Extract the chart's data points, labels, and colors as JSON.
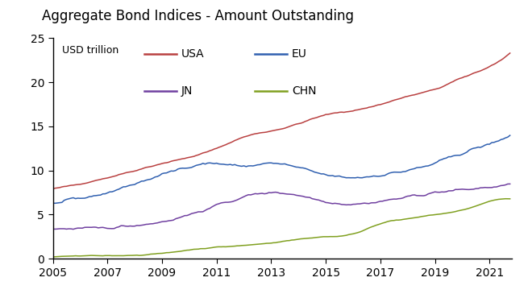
{
  "title": "Aggregate Bond Indices - Amount Outstanding",
  "ylabel": "USD trillion",
  "ylim": [
    0,
    25
  ],
  "yticks": [
    0,
    5,
    10,
    15,
    20,
    25
  ],
  "xlim": [
    2005.0,
    2021.83
  ],
  "xticks": [
    2005,
    2007,
    2009,
    2011,
    2013,
    2015,
    2017,
    2019,
    2021
  ],
  "series": {
    "USA": {
      "color": "#b94040",
      "years": [
        2005,
        2006,
        2007,
        2008,
        2009,
        2010,
        2011,
        2012,
        2013,
        2014,
        2015,
        2016,
        2017,
        2018,
        2019,
        2020,
        2021,
        2021.75
      ],
      "values": [
        7.9,
        8.5,
        9.2,
        10.0,
        10.8,
        11.5,
        12.5,
        13.8,
        14.5,
        15.3,
        16.3,
        16.8,
        17.5,
        18.4,
        19.2,
        20.5,
        21.8,
        23.3
      ]
    },
    "EU": {
      "color": "#3060b0",
      "years": [
        2005,
        2006,
        2007,
        2008,
        2009,
        2010,
        2011,
        2012,
        2013,
        2014,
        2015,
        2016,
        2017,
        2018,
        2019,
        2020,
        2021,
        2021.75
      ],
      "values": [
        6.2,
        6.8,
        7.5,
        8.5,
        9.5,
        10.5,
        10.8,
        10.5,
        10.8,
        10.3,
        9.5,
        9.2,
        9.5,
        10.0,
        10.8,
        12.0,
        13.0,
        14.0
      ]
    },
    "JN": {
      "color": "#7040a0",
      "years": [
        2005,
        2006,
        2007,
        2008,
        2009,
        2010,
        2011,
        2012,
        2013,
        2014,
        2015,
        2016,
        2017,
        2018,
        2019,
        2020,
        2021,
        2021.75
      ],
      "values": [
        3.4,
        3.4,
        3.5,
        3.8,
        4.2,
        5.0,
        6.0,
        7.0,
        7.5,
        7.2,
        6.5,
        6.2,
        6.5,
        7.0,
        7.5,
        7.8,
        8.1,
        8.3
      ]
    },
    "CHN": {
      "color": "#80a020",
      "years": [
        2005,
        2006,
        2007,
        2008,
        2009,
        2010,
        2011,
        2012,
        2013,
        2014,
        2015,
        2016,
        2017,
        2018,
        2019,
        2020,
        2021,
        2021.75
      ],
      "values": [
        0.25,
        0.3,
        0.35,
        0.4,
        0.6,
        1.0,
        1.3,
        1.5,
        1.8,
        2.2,
        2.5,
        2.8,
        4.0,
        4.5,
        5.0,
        5.5,
        6.5,
        6.8
      ]
    }
  },
  "background_color": "#ffffff",
  "title_fontsize": 12,
  "tick_fontsize": 10,
  "legend_fontsize": 10
}
